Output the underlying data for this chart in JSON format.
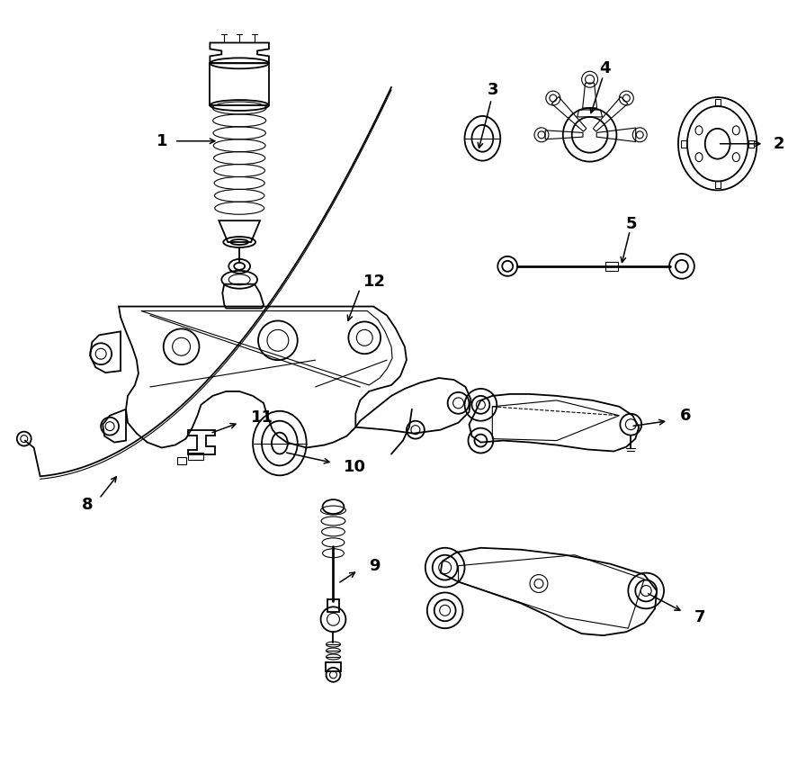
{
  "bg_color": "#ffffff",
  "line_color": "#000000",
  "figsize": [
    8.87,
    8.49
  ],
  "dpi": 100,
  "lw_main": 1.3,
  "lw_thin": 0.8,
  "lw_thick": 2.0
}
